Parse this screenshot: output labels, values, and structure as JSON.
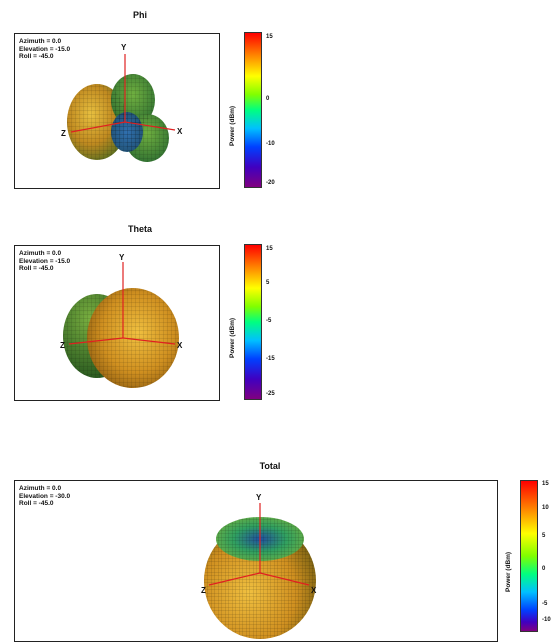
{
  "panels": [
    {
      "title": "Phi",
      "info": {
        "azimuth": "Azimuth = 0.0",
        "elevation": "Elevation = -15.0",
        "roll": "Roll = -45.0"
      },
      "axes": {
        "x": "X",
        "y": "Y",
        "z": "Z"
      },
      "colorbar": {
        "label": "Power (dBm)",
        "ticks": [
          "15",
          "0",
          "-10",
          "-20"
        ]
      }
    },
    {
      "title": "Theta",
      "info": {
        "azimuth": "Azimuth = 0.0",
        "elevation": "Elevation = -15.0",
        "roll": "Roll = -45.0"
      },
      "axes": {
        "x": "X",
        "y": "Y",
        "z": "Z"
      },
      "colorbar": {
        "label": "Power (dBm)",
        "ticks": [
          "15",
          "5",
          "-5",
          "-15",
          "-25"
        ]
      }
    },
    {
      "title": "Total",
      "info": {
        "azimuth": "Azimuth = 0.0",
        "elevation": "Elevation = -30.0",
        "roll": "Roll = -45.0"
      },
      "axes": {
        "x": "X",
        "y": "Y",
        "z": "Z"
      },
      "colorbar": {
        "label": "Power (dBm)",
        "ticks": [
          "15",
          "10",
          "5",
          "0",
          "-5",
          "-10"
        ]
      }
    }
  ],
  "colors": {
    "colormap": [
      "#ff0000",
      "#ff8000",
      "#ffff00",
      "#80ff00",
      "#00ff80",
      "#00c0ff",
      "#0040ff",
      "#4000c0",
      "#800080"
    ],
    "surface_warm": "#e0a020",
    "surface_green": "#4a9a30",
    "surface_blue": "#3060a0",
    "axis_red": "#e02020"
  }
}
